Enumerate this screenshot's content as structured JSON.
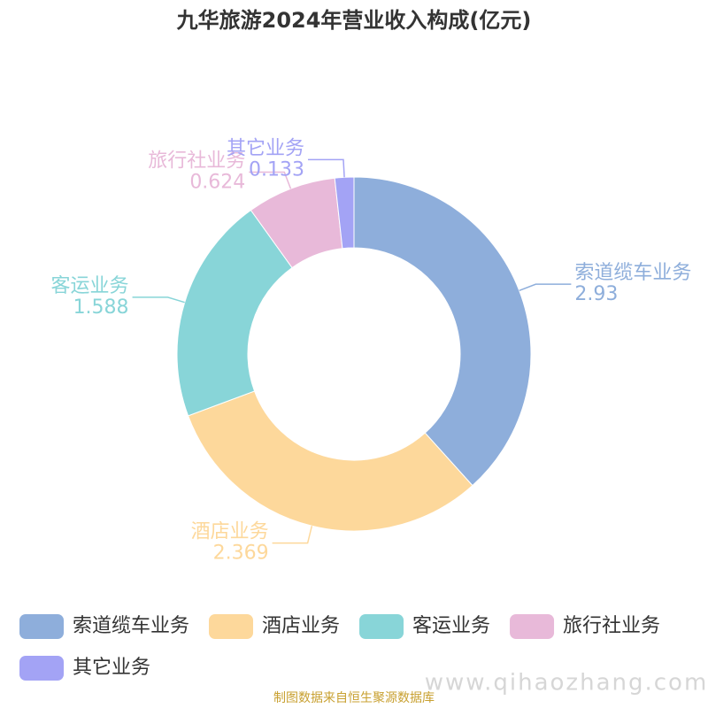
{
  "chart_data": {
    "type": "donut",
    "title": "九华旅游2024年营业收入构成(亿元)",
    "categories": [
      "索道缆车业务",
      "酒店业务",
      "客运业务",
      "旅行社业务",
      "其它业务"
    ],
    "values": [
      2.93,
      2.369,
      1.588,
      0.624,
      0.133
    ],
    "colors": [
      "#8eaedb",
      "#fdd89b",
      "#88d5d8",
      "#e8b9d9",
      "#a3a3f5"
    ],
    "legend": "bottom",
    "source": "制图数据来自恒生聚源数据库",
    "watermark": "www.qihaozhang.com"
  }
}
